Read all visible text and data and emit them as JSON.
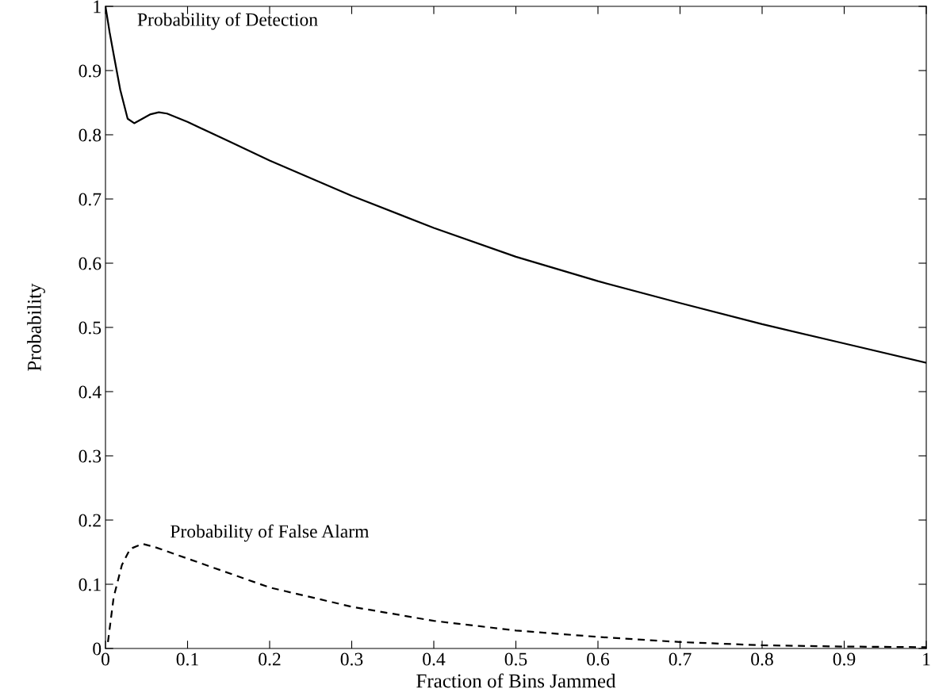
{
  "chart_data": {
    "type": "line",
    "xlabel": "Fraction of Bins Jammed",
    "ylabel": "Probability",
    "xlim": [
      0,
      1
    ],
    "ylim": [
      0,
      1
    ],
    "xticks": [
      0,
      0.1,
      0.2,
      0.3,
      0.4,
      0.5,
      0.6,
      0.7,
      0.8,
      0.9,
      1
    ],
    "yticks": [
      0,
      0.1,
      0.2,
      0.3,
      0.4,
      0.5,
      0.6,
      0.7,
      0.8,
      0.9,
      1
    ],
    "grid": false,
    "legend": false,
    "series": [
      {
        "color": "#000000",
        "line_style": "solid",
        "x": [
          0,
          0.005,
          0.01,
          0.018,
          0.027,
          0.035,
          0.045,
          0.055,
          0.065,
          0.075,
          0.1,
          0.15,
          0.2,
          0.3,
          0.4,
          0.5,
          0.6,
          0.7,
          0.8,
          0.9,
          1.0
        ],
        "values": [
          1.0,
          0.96,
          0.925,
          0.87,
          0.825,
          0.818,
          0.825,
          0.832,
          0.835,
          0.833,
          0.82,
          0.79,
          0.76,
          0.705,
          0.655,
          0.61,
          0.572,
          0.538,
          0.505,
          0.475,
          0.445
        ]
      },
      {
        "color": "#000000",
        "line_style": "dashed",
        "x": [
          0.003,
          0.01,
          0.02,
          0.03,
          0.045,
          0.06,
          0.1,
          0.2,
          0.3,
          0.4,
          0.5,
          0.6,
          0.7,
          0.8,
          0.9,
          1.0
        ],
        "values": [
          0.01,
          0.08,
          0.13,
          0.155,
          0.163,
          0.158,
          0.14,
          0.095,
          0.065,
          0.043,
          0.028,
          0.018,
          0.01,
          0.005,
          0.003,
          0.002
        ]
      }
    ],
    "annotations": [
      "Probability of Detection",
      "Probability of False Alarm"
    ]
  }
}
